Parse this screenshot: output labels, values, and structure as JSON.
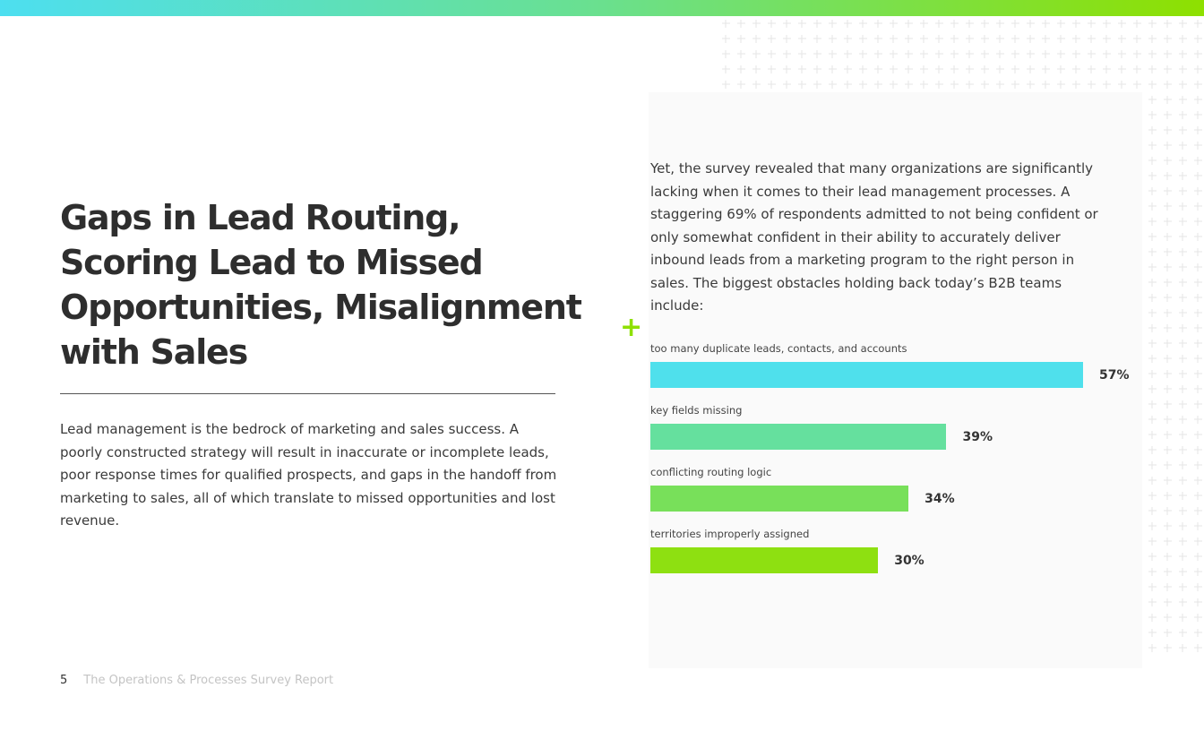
{
  "heading": "Gaps in Lead Routing, Scoring Lead to Missed Opportunities, Misalignment with Sales",
  "lead_paragraph": "Lead management is the bedrock of marketing and sales success. A poorly constructed strategy will result in inaccurate or incomplete leads, poor response times for qualified prospects, and gaps in the handoff from marketing to sales, all of which translate to missed opportunities and lost revenue.",
  "intro_paragraph": "Yet, the survey revealed that many organizations are significantly lacking when it comes to their lead management processes. A staggering 69% of respondents admitted to not being confident or only somewhat confident in their ability to accurately deliver inbound leads from a marketing program to the right person in sales. The biggest obstacles holding back today’s B2B teams include:",
  "accent_icon": "plus-icon",
  "chart_data": {
    "type": "bar",
    "orientation": "horizontal",
    "categories": [
      "too many duplicate leads, contacts, and accounts",
      "key fields missing",
      "conflicting routing logic",
      "territories improperly assigned"
    ],
    "values": [
      57,
      39,
      34,
      30
    ],
    "labels": [
      "57%",
      "39%",
      "34%",
      "30%"
    ],
    "colors": [
      "#4fe0ec",
      "#65e09e",
      "#78e05a",
      "#8ee011"
    ],
    "xlim": [
      0,
      100
    ],
    "grid": false
  },
  "footer": {
    "page_number": "5",
    "title": "The Operations & Processes Survey Report"
  },
  "colors": {
    "gradient_start": "#4ddff0",
    "gradient_end": "#8ee000",
    "accent": "#8ee000"
  }
}
